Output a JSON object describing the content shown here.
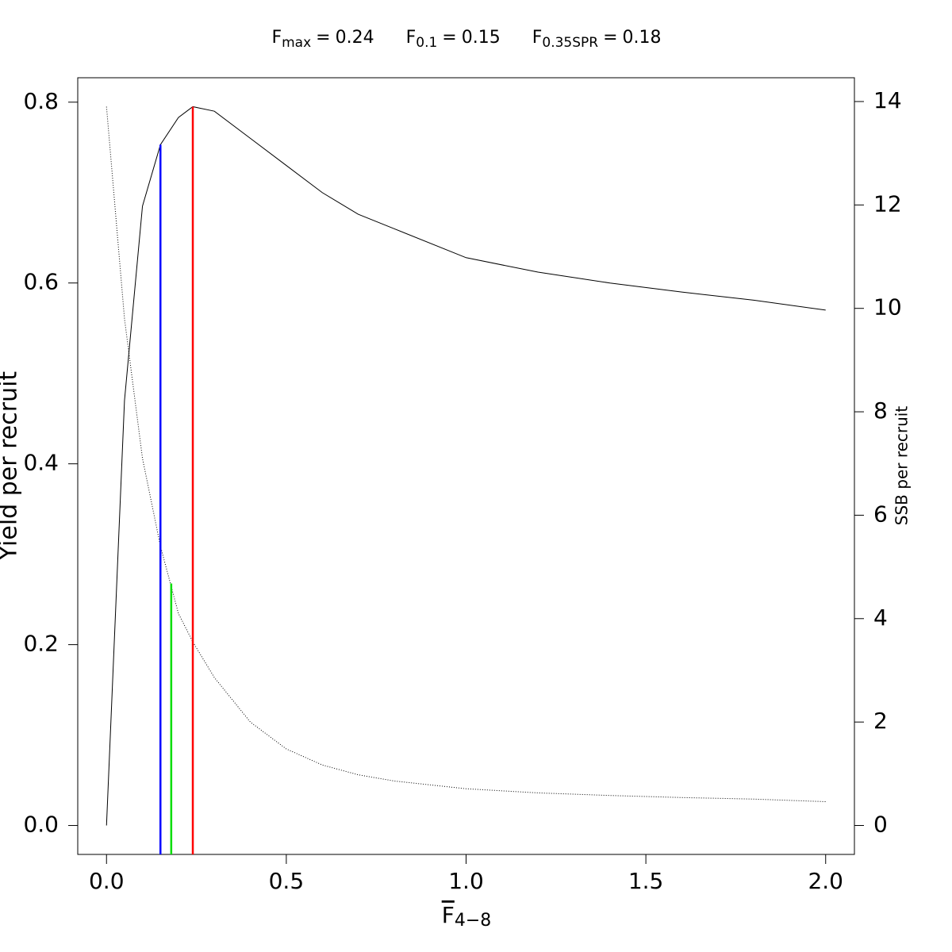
{
  "chart_data": {
    "type": "line",
    "reference_lines": [
      {
        "symbol": "F",
        "subscript": "max",
        "relation": "=",
        "x": 0.24,
        "top": 0.795,
        "axis": "y",
        "color": "#ff0000"
      },
      {
        "symbol": "F",
        "subscript": "0.1",
        "relation": "=",
        "x": 0.15,
        "top": 0.753,
        "axis": "y",
        "color": "#0000ff"
      },
      {
        "symbol": "F",
        "subscript": "0.35SPR",
        "relation": "=",
        "x": 0.18,
        "top": 4.68,
        "axis": "y2",
        "color": "#00dd00"
      }
    ],
    "x_label": {
      "text": "F",
      "subscript": "4−8"
    },
    "y_label": "Yield per recruit",
    "y2_label": "SSB per recruit",
    "x": [
      0,
      0.05,
      0.1,
      0.15,
      0.2,
      0.24,
      0.3,
      0.4,
      0.5,
      0.6,
      0.7,
      0.8,
      1.0,
      1.2,
      1.4,
      1.6,
      1.8,
      2.0
    ],
    "series": [
      {
        "name": "Yield per recruit",
        "color": "#000000",
        "axis": "y",
        "dash": "none",
        "values": [
          0,
          0.47,
          0.685,
          0.753,
          0.783,
          0.795,
          0.79,
          0.76,
          0.73,
          0.7,
          0.676,
          0.66,
          0.628,
          0.612,
          0.6,
          0.59,
          0.581,
          0.57
        ]
      },
      {
        "name": "SSB per recruit",
        "color": "#000000",
        "axis": "y2",
        "dash": "1 2",
        "values": [
          13.9,
          9.8,
          7.1,
          5.4,
          4.1,
          3.55,
          2.86,
          2.0,
          1.48,
          1.17,
          0.98,
          0.86,
          0.71,
          0.63,
          0.58,
          0.54,
          0.51,
          0.46
        ]
      }
    ],
    "xlim": [
      -0.08,
      2.08
    ],
    "xticks": [
      {
        "value": 0,
        "label": "0.0"
      },
      0.5,
      {
        "value": 1,
        "label": "1.0"
      },
      1.5,
      {
        "value": 2,
        "label": "2.0"
      }
    ],
    "ylim": [
      -0.032,
      0.827
    ],
    "yticks": [
      {
        "value": 0,
        "label": "0.0"
      },
      0.2,
      0.4,
      0.6,
      0.8
    ],
    "y2lim": [
      -0.56,
      14.46
    ],
    "y2ticks": [
      0,
      2,
      4,
      6,
      8,
      10,
      12,
      14
    ],
    "grid": false
  }
}
